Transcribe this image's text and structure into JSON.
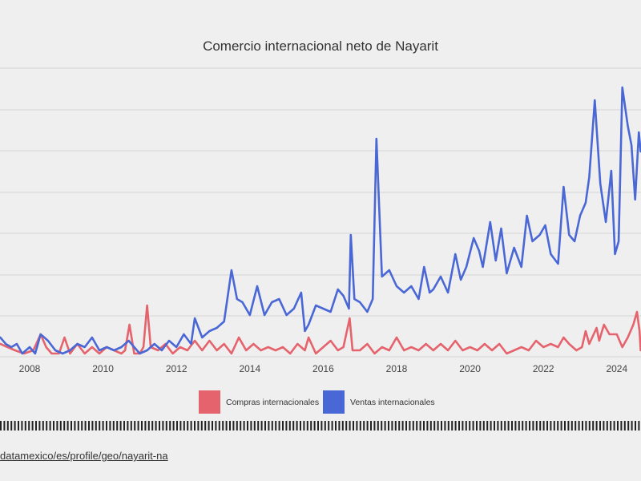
{
  "chart_data": {
    "type": "line",
    "title": "Comercio internacional neto de Nayarit",
    "xlabel": "",
    "ylabel": "",
    "x_ticks": [
      "2008",
      "2010",
      "2012",
      "2014",
      "2016",
      "2018",
      "2020",
      "2022",
      "2024"
    ],
    "xlim": [
      2007.2,
      2024.65
    ],
    "ylim": [
      0,
      100
    ],
    "grid": true,
    "legend_placement": "bottom",
    "series": [
      {
        "name": "Compras internacionales",
        "color": "#e5636c",
        "points": [
          [
            2007.2,
            4
          ],
          [
            2007.4,
            3
          ],
          [
            2007.6,
            2
          ],
          [
            2007.85,
            1
          ],
          [
            2008.1,
            2
          ],
          [
            2008.3,
            7
          ],
          [
            2008.45,
            3
          ],
          [
            2008.6,
            1
          ],
          [
            2008.8,
            1
          ],
          [
            2008.95,
            6
          ],
          [
            2009.1,
            1
          ],
          [
            2009.3,
            4
          ],
          [
            2009.5,
            1
          ],
          [
            2009.7,
            3
          ],
          [
            2009.9,
            1
          ],
          [
            2010.1,
            3
          ],
          [
            2010.3,
            2
          ],
          [
            2010.5,
            1
          ],
          [
            2010.6,
            2
          ],
          [
            2010.72,
            10
          ],
          [
            2010.85,
            1
          ],
          [
            2011.0,
            1
          ],
          [
            2011.1,
            3
          ],
          [
            2011.2,
            16
          ],
          [
            2011.3,
            3
          ],
          [
            2011.5,
            2
          ],
          [
            2011.7,
            4
          ],
          [
            2011.9,
            1
          ],
          [
            2012.1,
            3
          ],
          [
            2012.3,
            2
          ],
          [
            2012.5,
            5
          ],
          [
            2012.7,
            2
          ],
          [
            2012.9,
            5
          ],
          [
            2013.1,
            2
          ],
          [
            2013.3,
            4
          ],
          [
            2013.5,
            1
          ],
          [
            2013.7,
            6
          ],
          [
            2013.9,
            2
          ],
          [
            2014.1,
            4
          ],
          [
            2014.3,
            2
          ],
          [
            2014.5,
            3
          ],
          [
            2014.7,
            2
          ],
          [
            2014.9,
            3
          ],
          [
            2015.1,
            1
          ],
          [
            2015.3,
            4
          ],
          [
            2015.5,
            2
          ],
          [
            2015.6,
            6
          ],
          [
            2015.8,
            1
          ],
          [
            2016.0,
            3
          ],
          [
            2016.2,
            5
          ],
          [
            2016.4,
            2
          ],
          [
            2016.55,
            3
          ],
          [
            2016.72,
            12
          ],
          [
            2016.8,
            2
          ],
          [
            2017.0,
            2
          ],
          [
            2017.2,
            4
          ],
          [
            2017.4,
            1
          ],
          [
            2017.6,
            3
          ],
          [
            2017.8,
            2
          ],
          [
            2018.0,
            6
          ],
          [
            2018.2,
            2
          ],
          [
            2018.4,
            3
          ],
          [
            2018.6,
            2
          ],
          [
            2018.8,
            4
          ],
          [
            2019.0,
            2
          ],
          [
            2019.2,
            4
          ],
          [
            2019.4,
            2
          ],
          [
            2019.6,
            5
          ],
          [
            2019.8,
            2
          ],
          [
            2020.0,
            3
          ],
          [
            2020.2,
            2
          ],
          [
            2020.4,
            4
          ],
          [
            2020.6,
            2
          ],
          [
            2020.8,
            4
          ],
          [
            2021.0,
            1
          ],
          [
            2021.2,
            2
          ],
          [
            2021.4,
            3
          ],
          [
            2021.6,
            2
          ],
          [
            2021.8,
            5
          ],
          [
            2022.0,
            3
          ],
          [
            2022.2,
            4
          ],
          [
            2022.4,
            3
          ],
          [
            2022.55,
            6
          ],
          [
            2022.7,
            4
          ],
          [
            2022.9,
            2
          ],
          [
            2023.05,
            3
          ],
          [
            2023.15,
            8
          ],
          [
            2023.25,
            4
          ],
          [
            2023.45,
            9
          ],
          [
            2023.52,
            5
          ],
          [
            2023.65,
            10
          ],
          [
            2023.8,
            7
          ],
          [
            2024.0,
            7
          ],
          [
            2024.15,
            3
          ],
          [
            2024.3,
            6
          ],
          [
            2024.45,
            10
          ],
          [
            2024.55,
            14
          ],
          [
            2024.62,
            8
          ],
          [
            2024.65,
            2
          ]
        ]
      },
      {
        "name": "Ventas internacionales",
        "color": "#4a67d6",
        "points": [
          [
            2007.2,
            6
          ],
          [
            2007.35,
            4
          ],
          [
            2007.5,
            3
          ],
          [
            2007.65,
            4
          ],
          [
            2007.8,
            1
          ],
          [
            2008.0,
            3
          ],
          [
            2008.15,
            1
          ],
          [
            2008.3,
            7
          ],
          [
            2008.5,
            5
          ],
          [
            2008.7,
            2
          ],
          [
            2008.9,
            1
          ],
          [
            2009.1,
            2
          ],
          [
            2009.3,
            4
          ],
          [
            2009.5,
            3
          ],
          [
            2009.7,
            6
          ],
          [
            2009.9,
            2
          ],
          [
            2010.1,
            3
          ],
          [
            2010.3,
            2
          ],
          [
            2010.5,
            3
          ],
          [
            2010.7,
            5
          ],
          [
            2010.85,
            3
          ],
          [
            2011.0,
            1
          ],
          [
            2011.2,
            2
          ],
          [
            2011.4,
            4
          ],
          [
            2011.6,
            2
          ],
          [
            2011.8,
            5
          ],
          [
            2012.0,
            3
          ],
          [
            2012.2,
            7
          ],
          [
            2012.4,
            4
          ],
          [
            2012.5,
            12
          ],
          [
            2012.7,
            6
          ],
          [
            2012.9,
            8
          ],
          [
            2013.1,
            9
          ],
          [
            2013.3,
            11
          ],
          [
            2013.5,
            27
          ],
          [
            2013.65,
            18
          ],
          [
            2013.8,
            17
          ],
          [
            2014.0,
            13
          ],
          [
            2014.2,
            22
          ],
          [
            2014.4,
            13
          ],
          [
            2014.6,
            17
          ],
          [
            2014.8,
            18
          ],
          [
            2015.0,
            13
          ],
          [
            2015.2,
            15
          ],
          [
            2015.4,
            20
          ],
          [
            2015.5,
            8
          ],
          [
            2015.6,
            10
          ],
          [
            2015.8,
            16
          ],
          [
            2016.0,
            15
          ],
          [
            2016.2,
            14
          ],
          [
            2016.4,
            21
          ],
          [
            2016.55,
            19
          ],
          [
            2016.7,
            15
          ],
          [
            2016.75,
            38
          ],
          [
            2016.85,
            18
          ],
          [
            2017.0,
            17
          ],
          [
            2017.2,
            14
          ],
          [
            2017.35,
            18
          ],
          [
            2017.45,
            68
          ],
          [
            2017.6,
            25
          ],
          [
            2017.8,
            27
          ],
          [
            2018.0,
            22
          ],
          [
            2018.2,
            20
          ],
          [
            2018.4,
            22
          ],
          [
            2018.6,
            18
          ],
          [
            2018.75,
            28
          ],
          [
            2018.9,
            20
          ],
          [
            2019.0,
            21
          ],
          [
            2019.2,
            25
          ],
          [
            2019.4,
            20
          ],
          [
            2019.6,
            32
          ],
          [
            2019.75,
            24
          ],
          [
            2019.9,
            28
          ],
          [
            2020.1,
            37
          ],
          [
            2020.25,
            33
          ],
          [
            2020.35,
            28
          ],
          [
            2020.55,
            42
          ],
          [
            2020.7,
            30
          ],
          [
            2020.85,
            40
          ],
          [
            2021.0,
            26
          ],
          [
            2021.2,
            34
          ],
          [
            2021.4,
            28
          ],
          [
            2021.55,
            44
          ],
          [
            2021.7,
            36
          ],
          [
            2021.9,
            38
          ],
          [
            2022.05,
            41
          ],
          [
            2022.2,
            32
          ],
          [
            2022.4,
            29
          ],
          [
            2022.55,
            53
          ],
          [
            2022.7,
            38
          ],
          [
            2022.85,
            36
          ],
          [
            2023.0,
            44
          ],
          [
            2023.15,
            48
          ],
          [
            2023.25,
            56
          ],
          [
            2023.4,
            80
          ],
          [
            2023.55,
            54
          ],
          [
            2023.7,
            42
          ],
          [
            2023.85,
            58
          ],
          [
            2023.95,
            32
          ],
          [
            2024.05,
            36
          ],
          [
            2024.15,
            84
          ],
          [
            2024.3,
            72
          ],
          [
            2024.4,
            66
          ],
          [
            2024.5,
            49
          ],
          [
            2024.6,
            70
          ],
          [
            2024.65,
            64
          ]
        ]
      }
    ]
  },
  "source": {
    "text": "datamexico/es/profile/geo/nayarit-na"
  }
}
